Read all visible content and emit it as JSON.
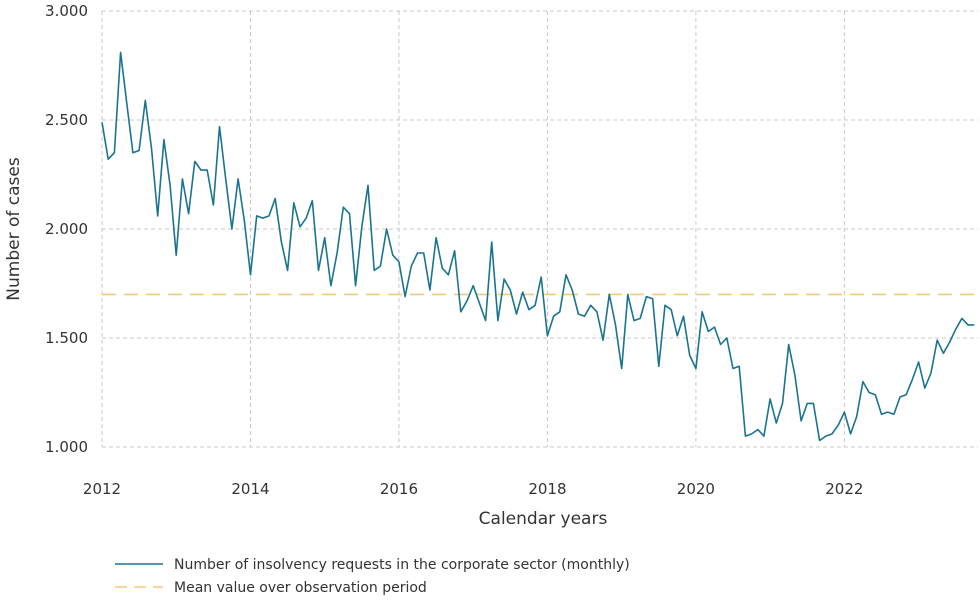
{
  "chart_data": {
    "type": "line",
    "title": "",
    "xlabel": "Calendar years",
    "ylabel": "Number of cases",
    "xlim": [
      2012,
      2023.8
    ],
    "ylim": [
      1000,
      3000
    ],
    "x_ticks": [
      2012,
      2014,
      2016,
      2018,
      2020,
      2022
    ],
    "x_tick_labels": [
      "2012",
      "2014",
      "2016",
      "2018",
      "2020",
      "2022"
    ],
    "y_ticks": [
      1000,
      1500,
      2000,
      2500,
      3000
    ],
    "y_tick_labels": [
      "1.000",
      "1.500",
      "2.000",
      "2.500",
      "3.000"
    ],
    "grid": true,
    "legend_position": "bottom-left",
    "series": [
      {
        "name": "Number of insolvency requests in the corporate sector (monthly)",
        "color": "#1a7491",
        "style": "solid",
        "x_start": 2012,
        "x_step_months": 1,
        "values": [
          2490,
          2320,
          2350,
          2810,
          2580,
          2350,
          2360,
          2590,
          2370,
          2060,
          2410,
          2200,
          1880,
          2230,
          2070,
          2310,
          2270,
          2270,
          2110,
          2470,
          2230,
          2000,
          2230,
          2040,
          1790,
          2060,
          2050,
          2060,
          2140,
          1940,
          1810,
          2120,
          2010,
          2050,
          2130,
          1810,
          1960,
          1740,
          1890,
          2100,
          2070,
          1740,
          2010,
          2200,
          1810,
          1830,
          2000,
          1880,
          1850,
          1690,
          1830,
          1890,
          1890,
          1720,
          1960,
          1820,
          1790,
          1900,
          1620,
          1670,
          1740,
          1660,
          1580,
          1940,
          1580,
          1770,
          1720,
          1610,
          1710,
          1630,
          1650,
          1780,
          1510,
          1600,
          1620,
          1790,
          1720,
          1610,
          1600,
          1650,
          1620,
          1490,
          1700,
          1560,
          1360,
          1700,
          1580,
          1590,
          1690,
          1680,
          1370,
          1650,
          1630,
          1510,
          1600,
          1420,
          1360,
          1620,
          1530,
          1550,
          1470,
          1500,
          1360,
          1370,
          1050,
          1060,
          1080,
          1050,
          1220,
          1110,
          1200,
          1470,
          1330,
          1120,
          1200,
          1200,
          1030,
          1050,
          1060,
          1100,
          1160,
          1060,
          1140,
          1300,
          1250,
          1240,
          1150,
          1160,
          1150,
          1230,
          1240,
          1310,
          1390,
          1270,
          1340,
          1490,
          1430,
          1480,
          1540,
          1590,
          1560,
          1560
        ]
      },
      {
        "name": "Mean value over observation period",
        "color": "#f5c97a",
        "style": "dashed",
        "constant_value": 1700
      }
    ]
  }
}
